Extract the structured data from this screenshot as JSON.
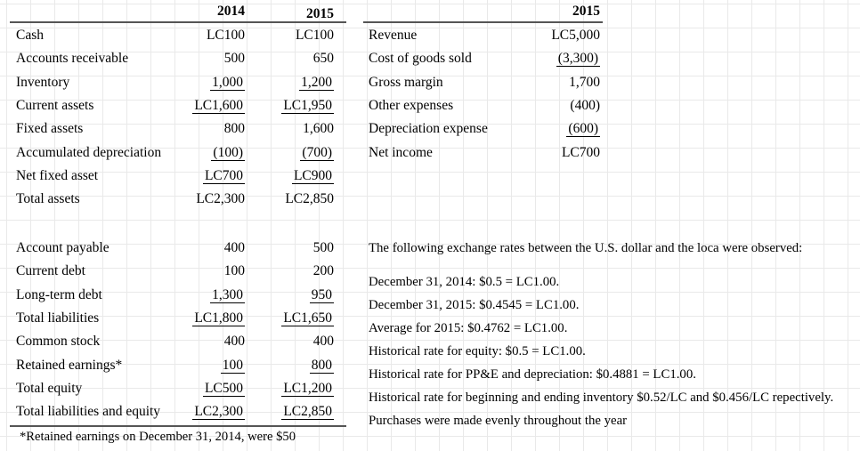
{
  "balance_sheet": {
    "col_headers": [
      "2014",
      "2015"
    ],
    "sections": {
      "assets": {
        "rows": [
          {
            "label": "Cash",
            "values": [
              "LC100",
              "LC100"
            ],
            "underline": [
              false,
              false
            ]
          },
          {
            "label": "Accounts receivable",
            "values": [
              "500",
              "650"
            ],
            "underline": [
              false,
              false
            ]
          },
          {
            "label": "Inventory",
            "values": [
              "1,000",
              "1,200"
            ],
            "underline": [
              true,
              true
            ]
          },
          {
            "label": "Current assets",
            "values": [
              "LC1,600",
              "LC1,950"
            ],
            "underline": [
              true,
              true
            ]
          },
          {
            "label": "Fixed assets",
            "values": [
              "800",
              "1,600"
            ],
            "underline": [
              false,
              false
            ]
          },
          {
            "label": "Accumulated depreciation",
            "values": [
              "(100)",
              "(700)"
            ],
            "underline": [
              true,
              true
            ]
          },
          {
            "label": "Net fixed asset",
            "values": [
              "LC700",
              "LC900"
            ],
            "underline": [
              true,
              true
            ]
          },
          {
            "label": "Total assets",
            "values": [
              "LC2,300",
              "LC2,850"
            ],
            "underline": [
              false,
              false
            ]
          }
        ]
      },
      "liabilities_equity": {
        "rows": [
          {
            "label": "Account payable",
            "values": [
              "400",
              "500"
            ],
            "underline": [
              false,
              false
            ]
          },
          {
            "label": "Current debt",
            "values": [
              "100",
              "200"
            ],
            "underline": [
              false,
              false
            ]
          },
          {
            "label": "Long-term debt",
            "values": [
              "1,300",
              "950"
            ],
            "underline": [
              true,
              true
            ]
          },
          {
            "label": "Total liabilities",
            "values": [
              "LC1,800",
              "LC1,650"
            ],
            "underline": [
              true,
              true
            ]
          },
          {
            "label": "Common stock",
            "values": [
              "400",
              "400"
            ],
            "underline": [
              false,
              false
            ]
          },
          {
            "label": "Retained earnings*",
            "values": [
              "100",
              "800"
            ],
            "underline": [
              true,
              true
            ]
          },
          {
            "label": "Total equity",
            "values": [
              "LC500",
              "LC1,200"
            ],
            "underline": [
              true,
              true
            ]
          },
          {
            "label": "Total liabilities and equity",
            "values": [
              "LC2,300",
              "LC2,850"
            ],
            "underline": [
              true,
              true
            ]
          }
        ]
      }
    },
    "footnote": "*Retained earnings on December 31, 2014, were $50"
  },
  "income_statement": {
    "col_header": "2015",
    "rows": [
      {
        "label": "Revenue",
        "values": [
          "LC5,000"
        ],
        "underline": [
          false
        ]
      },
      {
        "label": "Cost of goods sold",
        "values": [
          "(3,300)"
        ],
        "underline": [
          true
        ]
      },
      {
        "label": "Gross margin",
        "values": [
          "1,700"
        ],
        "underline": [
          false
        ]
      },
      {
        "label": "Other expenses",
        "values": [
          "(400)"
        ],
        "underline": [
          false
        ]
      },
      {
        "label": "Depreciation expense",
        "values": [
          "(600)"
        ],
        "underline": [
          true
        ]
      },
      {
        "label": "Net income",
        "values": [
          "LC700"
        ],
        "underline": [
          false
        ]
      }
    ]
  },
  "notes": {
    "intro": "The following exchange rates between the U.S. dollar and the loca were observed:",
    "lines": [
      "December 31, 2014: $0.5 = LC1.00.",
      "December 31, 2015: $0.4545 = LC1.00.",
      "Average for 2015: $0.4762 = LC1.00.",
      "Historical rate for equity: $0.5 = LC1.00.",
      "Historical rate for PP&E and depreciation: $0.4881 = LC1.00.",
      "Historical rate for beginning and ending inventory $0.52/LC and $0.456/LC repectively.",
      "Purchases were made evenly throughout the year"
    ]
  },
  "style": {
    "grid_color": "#e9e9e9",
    "rule_color": "#555555",
    "text_color": "#000000",
    "background": "#ffffff"
  }
}
